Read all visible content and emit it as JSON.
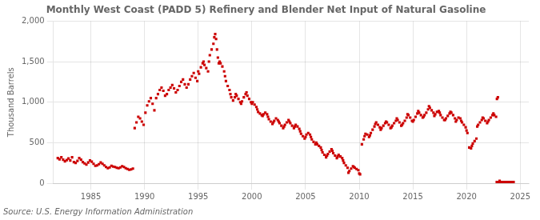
{
  "chart_data": {
    "type": "scatter",
    "title": "Monthly West Coast (PADD 5) Refinery and Blender Net Input of Natural Gasoline",
    "ylabel": "Thousand Barrels",
    "source": "Source: U.S. Energy Information Administration",
    "color": "#cc0000",
    "marker": "square",
    "grid": true,
    "xlim": [
      1981.5,
      2025.8
    ],
    "xticks": [
      1985,
      1990,
      1995,
      2000,
      2005,
      2010,
      2015,
      2020,
      2025
    ],
    "ylim": [
      0,
      2000
    ],
    "yticks": [
      0,
      500,
      {
        "value": 1000,
        "label": "1,000"
      },
      {
        "value": 1500,
        "label": "1,500"
      },
      {
        "value": 2000,
        "label": "2,000"
      }
    ],
    "x": [
      1981.917,
      1982.083,
      1982.25,
      1982.417,
      1982.583,
      1982.75,
      1982.917,
      1983.083,
      1983.25,
      1983.417,
      1983.583,
      1983.75,
      1983.917,
      1984.083,
      1984.25,
      1984.417,
      1984.583,
      1984.75,
      1984.917,
      1985.083,
      1985.25,
      1985.417,
      1985.583,
      1985.75,
      1985.917,
      1986.083,
      1986.25,
      1986.417,
      1986.583,
      1986.75,
      1986.917,
      1987.083,
      1987.25,
      1987.417,
      1987.583,
      1987.75,
      1987.917,
      1988.083,
      1988.25,
      1988.417,
      1988.583,
      1988.75,
      1988.917,
      1989.083,
      1989.25,
      1989.417,
      1989.583,
      1989.75,
      1989.917,
      1990.083,
      1990.25,
      1990.417,
      1990.583,
      1990.75,
      1990.917,
      1991.083,
      1991.25,
      1991.417,
      1991.583,
      1991.75,
      1991.917,
      1992.083,
      1992.25,
      1992.417,
      1992.583,
      1992.75,
      1992.917,
      1993.083,
      1993.25,
      1993.417,
      1993.583,
      1993.75,
      1993.917,
      1994.083,
      1994.25,
      1994.417,
      1994.583,
      1994.75,
      1994.917,
      1995.0,
      1995.083,
      1995.25,
      1995.417,
      1995.5,
      1995.583,
      1995.75,
      1995.917,
      1996.0,
      1996.083,
      1996.25,
      1996.417,
      1996.5,
      1996.583,
      1996.667,
      1996.75,
      1996.833,
      1996.917,
      1997.0,
      1997.083,
      1997.25,
      1997.417,
      1997.5,
      1997.583,
      1997.75,
      1997.917,
      1998.0,
      1998.083,
      1998.25,
      1998.417,
      1998.5,
      1998.583,
      1998.75,
      1998.917,
      1999.0,
      1999.083,
      1999.25,
      1999.417,
      1999.5,
      1999.583,
      1999.75,
      1999.917,
      2000.0,
      2000.083,
      2000.25,
      2000.417,
      2000.5,
      2000.583,
      2000.75,
      2000.917,
      2001.0,
      2001.083,
      2001.25,
      2001.417,
      2001.5,
      2001.583,
      2001.75,
      2001.917,
      2002.0,
      2002.083,
      2002.25,
      2002.417,
      2002.5,
      2002.583,
      2002.75,
      2002.917,
      2003.0,
      2003.083,
      2003.25,
      2003.417,
      2003.5,
      2003.583,
      2003.75,
      2003.917,
      2004.0,
      2004.083,
      2004.25,
      2004.417,
      2004.5,
      2004.583,
      2004.75,
      2004.917,
      2005.0,
      2005.083,
      2005.25,
      2005.417,
      2005.5,
      2005.583,
      2005.75,
      2005.917,
      2006.0,
      2006.083,
      2006.25,
      2006.417,
      2006.5,
      2006.583,
      2006.75,
      2006.917,
      2007.0,
      2007.083,
      2007.25,
      2007.417,
      2007.5,
      2007.583,
      2007.75,
      2007.917,
      2008.0,
      2008.083,
      2008.25,
      2008.417,
      2008.5,
      2008.583,
      2008.75,
      2008.917,
      2009.0,
      2009.083,
      2009.25,
      2009.417,
      2009.5,
      2009.583,
      2009.75,
      2009.917,
      2010.0,
      2010.083,
      2010.25,
      2010.417,
      2010.5,
      2010.583,
      2010.75,
      2010.917,
      2011.0,
      2011.083,
      2011.25,
      2011.417,
      2011.5,
      2011.583,
      2011.75,
      2011.917,
      2012.0,
      2012.083,
      2012.25,
      2012.417,
      2012.5,
      2012.583,
      2012.75,
      2012.917,
      2013.0,
      2013.083,
      2013.25,
      2013.417,
      2013.5,
      2013.583,
      2013.75,
      2013.917,
      2014.0,
      2014.083,
      2014.25,
      2014.417,
      2014.5,
      2014.583,
      2014.75,
      2014.917,
      2015.0,
      2015.083,
      2015.25,
      2015.417,
      2015.5,
      2015.583,
      2015.75,
      2015.917,
      2016.0,
      2016.083,
      2016.25,
      2016.417,
      2016.5,
      2016.583,
      2016.75,
      2016.917,
      2017.0,
      2017.083,
      2017.25,
      2017.417,
      2017.5,
      2017.583,
      2017.75,
      2017.917,
      2018.0,
      2018.083,
      2018.25,
      2018.417,
      2018.5,
      2018.583,
      2018.75,
      2018.917,
      2019.0,
      2019.083,
      2019.25,
      2019.417,
      2019.5,
      2019.583,
      2019.75,
      2019.917,
      2020.0,
      2020.083,
      2020.25,
      2020.417,
      2020.5,
      2020.583,
      2020.75,
      2020.917,
      2021.0,
      2021.083,
      2021.25,
      2021.417,
      2021.5,
      2021.583,
      2021.75,
      2021.917,
      2022.0,
      2022.083,
      2022.25,
      2022.417,
      2022.5,
      2022.583,
      2022.75,
      2022.833,
      2022.917,
      2023.083
    ],
    "values": [
      310,
      295,
      320,
      290,
      270,
      285,
      305,
      280,
      320,
      260,
      250,
      275,
      310,
      290,
      260,
      245,
      230,
      255,
      280,
      265,
      240,
      215,
      220,
      235,
      255,
      240,
      220,
      200,
      185,
      195,
      215,
      205,
      200,
      190,
      185,
      195,
      210,
      200,
      185,
      175,
      165,
      170,
      180,
      680,
      750,
      820,
      800,
      760,
      720,
      870,
      960,
      1010,
      1050,
      980,
      900,
      1050,
      1100,
      1150,
      1180,
      1140,
      1080,
      1100,
      1150,
      1180,
      1210,
      1170,
      1120,
      1150,
      1200,
      1250,
      1280,
      1220,
      1180,
      1220,
      1280,
      1320,
      1360,
      1300,
      1260,
      1380,
      1350,
      1430,
      1480,
      1500,
      1460,
      1420,
      1380,
      1500,
      1580,
      1650,
      1720,
      1800,
      1840,
      1780,
      1650,
      1550,
      1480,
      1500,
      1480,
      1440,
      1380,
      1320,
      1260,
      1200,
      1150,
      1100,
      1060,
      1020,
      1060,
      1100,
      1080,
      1040,
      1000,
      980,
      1010,
      1060,
      1100,
      1120,
      1080,
      1040,
      1000,
      980,
      1000,
      970,
      940,
      910,
      880,
      860,
      840,
      830,
      850,
      870,
      850,
      820,
      790,
      760,
      730,
      750,
      770,
      800,
      780,
      760,
      740,
      710,
      680,
      700,
      720,
      750,
      780,
      760,
      740,
      710,
      680,
      700,
      720,
      700,
      670,
      640,
      610,
      580,
      550,
      570,
      600,
      620,
      600,
      570,
      540,
      510,
      480,
      500,
      480,
      460,
      440,
      410,
      380,
      350,
      320,
      340,
      360,
      390,
      420,
      400,
      370,
      340,
      310,
      330,
      350,
      330,
      310,
      280,
      250,
      220,
      190,
      130,
      150,
      180,
      210,
      200,
      190,
      175,
      160,
      120,
      110,
      480,
      540,
      580,
      610,
      600,
      570,
      590,
      620,
      660,
      700,
      730,
      750,
      720,
      690,
      660,
      680,
      710,
      740,
      760,
      750,
      720,
      680,
      690,
      710,
      740,
      770,
      800,
      780,
      750,
      710,
      720,
      740,
      770,
      810,
      850,
      840,
      810,
      770,
      760,
      780,
      820,
      860,
      890,
      870,
      840,
      810,
      820,
      840,
      870,
      910,
      950,
      930,
      900,
      870,
      830,
      850,
      880,
      890,
      870,
      840,
      810,
      780,
      780,
      800,
      830,
      860,
      880,
      870,
      840,
      800,
      760,
      780,
      810,
      800,
      770,
      750,
      720,
      690,
      650,
      620,
      440,
      430,
      460,
      490,
      520,
      550,
      700,
      720,
      750,
      780,
      810,
      800,
      770,
      740,
      760,
      780,
      810,
      840,
      860,
      840,
      820,
      1040,
      1060,
      30
    ],
    "highlight_bar": {
      "x": [
        2022.7,
        2024.5
      ],
      "y": [
        0,
        30
      ]
    }
  }
}
